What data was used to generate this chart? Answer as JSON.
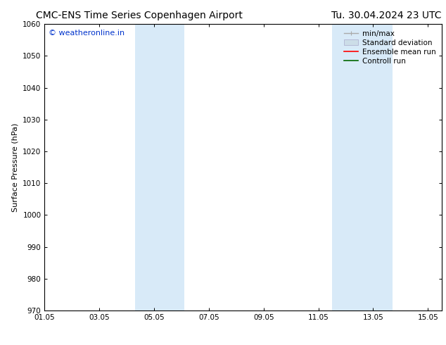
{
  "title_left": "CMC-ENS Time Series Copenhagen Airport",
  "title_right": "Tu. 30.04.2024 23 UTC",
  "ylabel": "Surface Pressure (hPa)",
  "ylim": [
    970,
    1060
  ],
  "yticks": [
    970,
    980,
    990,
    1000,
    1010,
    1020,
    1030,
    1040,
    1050,
    1060
  ],
  "xlim": [
    0,
    14.5
  ],
  "xtick_positions": [
    0,
    2,
    4,
    6,
    8,
    10,
    12,
    14
  ],
  "xtick_labels": [
    "01.05",
    "03.05",
    "05.05",
    "07.05",
    "09.05",
    "11.05",
    "13.05",
    "15.05"
  ],
  "watermark": "© weatheronline.in",
  "watermark_color": "#0033cc",
  "bg_color": "#ffffff",
  "plot_bg_color": "#ffffff",
  "shaded_bands": [
    {
      "x_start": 3.3,
      "x_end": 4.1,
      "color": "#d8eaf8"
    },
    {
      "x_start": 4.1,
      "x_end": 5.1,
      "color": "#d8eaf8"
    },
    {
      "x_start": 10.5,
      "x_end": 11.5,
      "color": "#d8eaf8"
    },
    {
      "x_start": 11.5,
      "x_end": 12.7,
      "color": "#d8eaf8"
    }
  ],
  "legend_entries": [
    {
      "label": "min/max",
      "color": "#aaaaaa",
      "style": "line_with_caps"
    },
    {
      "label": "Standard deviation",
      "color": "#ccdde8",
      "style": "rect"
    },
    {
      "label": "Ensemble mean run",
      "color": "#ff0000",
      "style": "line"
    },
    {
      "label": "Controll run",
      "color": "#006600",
      "style": "line"
    }
  ],
  "title_fontsize": 10,
  "axis_label_fontsize": 8,
  "tick_fontsize": 7.5,
  "legend_fontsize": 7.5,
  "watermark_fontsize": 8,
  "tick_color": "#000000",
  "spine_color": "#000000"
}
